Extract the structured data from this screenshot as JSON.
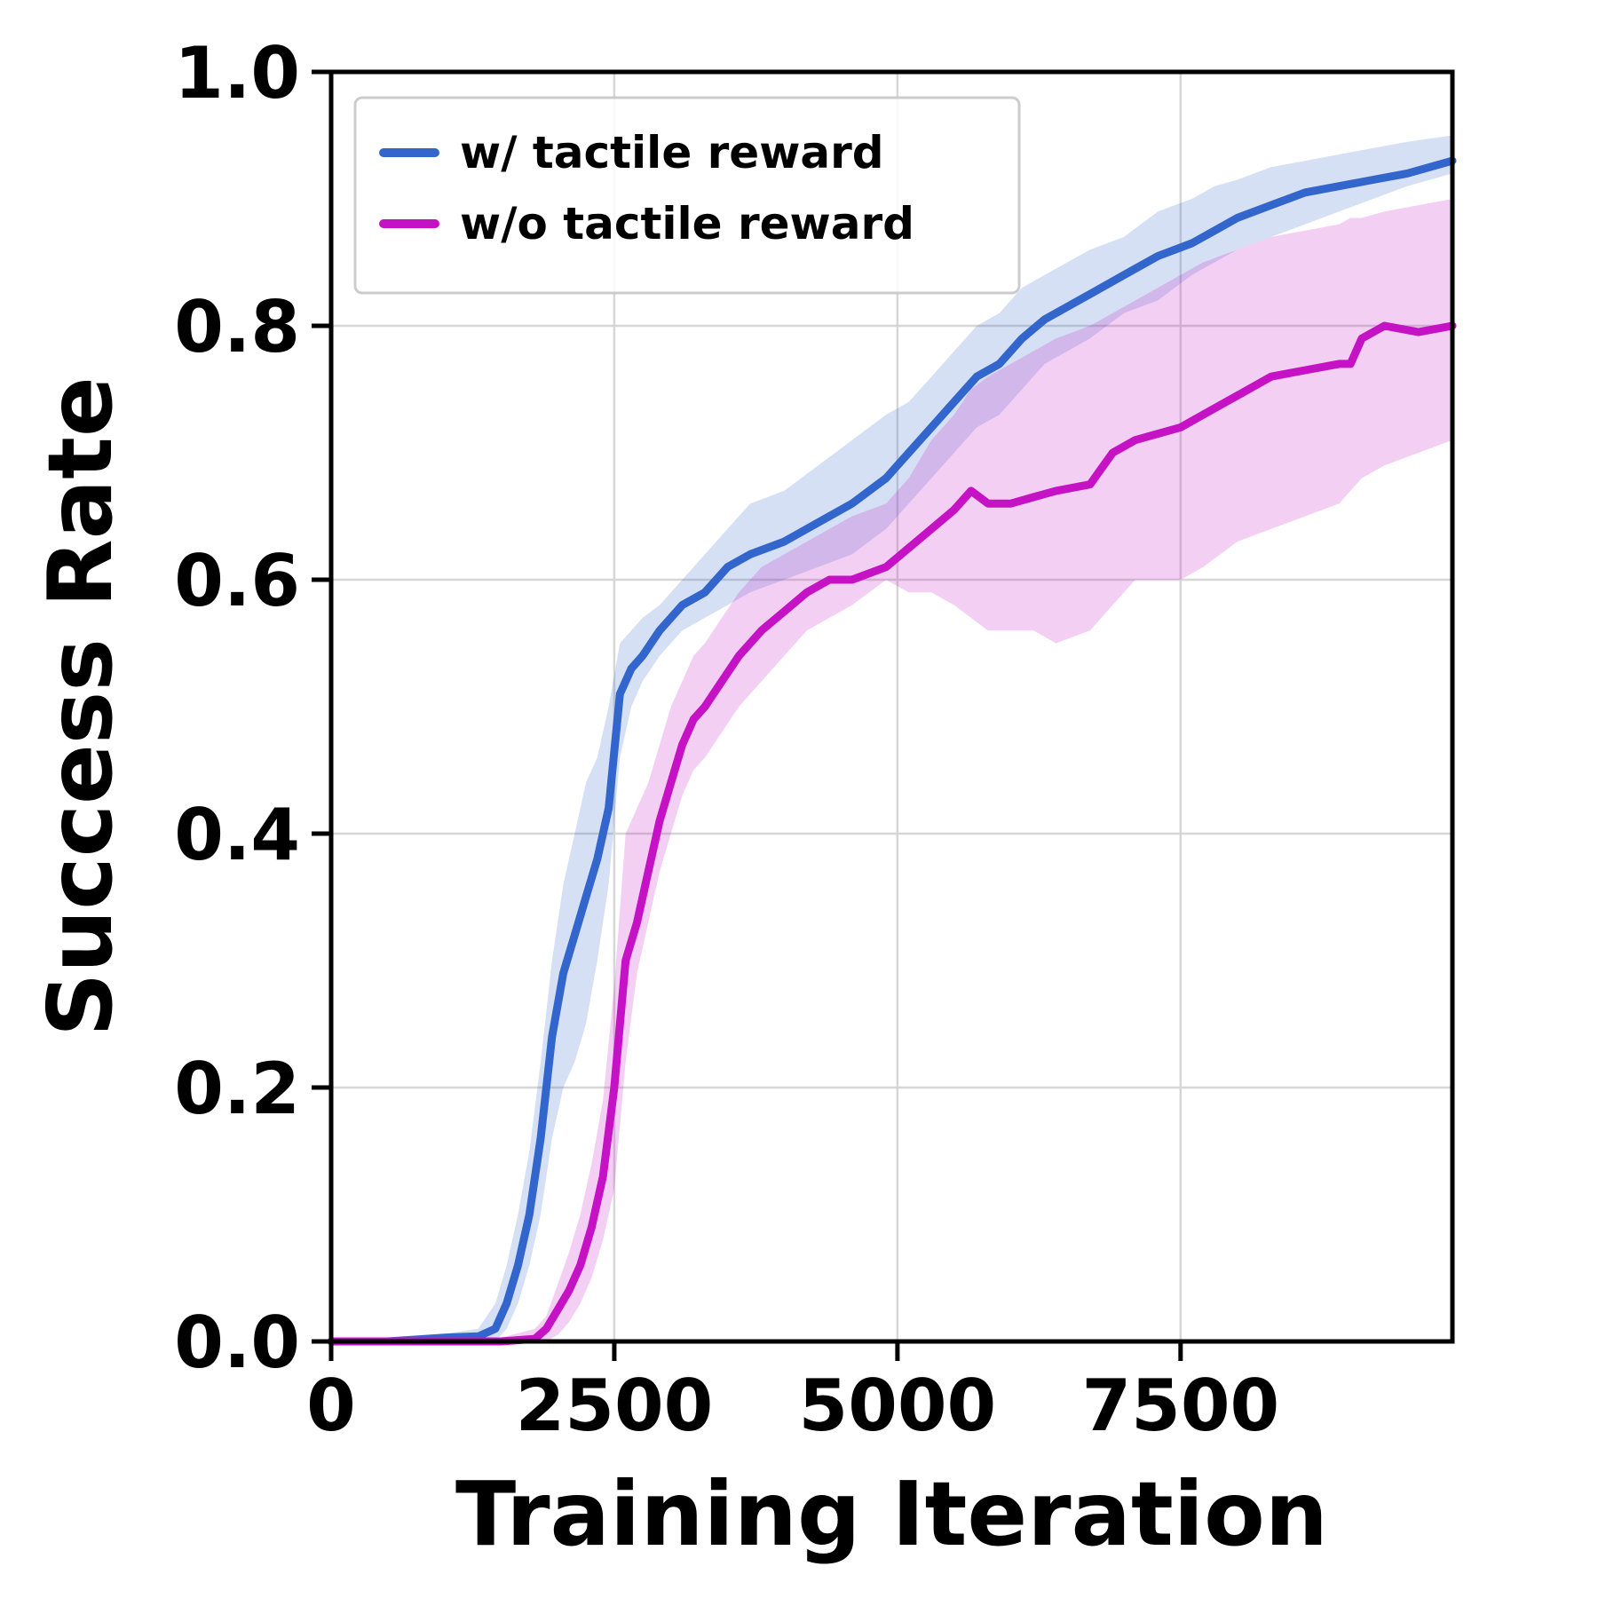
{
  "chart_data": {
    "type": "line",
    "xlabel": "Training Iteration",
    "ylabel": "Success Rate",
    "xlim": [
      0,
      9900
    ],
    "ylim": [
      0,
      1.0
    ],
    "xticks": [
      0,
      2500,
      5000,
      7500
    ],
    "xtick_labels": [
      "0",
      "2500",
      "5000",
      "7500"
    ],
    "yticks": [
      0.0,
      0.2,
      0.4,
      0.6,
      0.8,
      1.0
    ],
    "ytick_labels": [
      "0.0",
      "0.2",
      "0.4",
      "0.6",
      "0.8",
      "1.0"
    ],
    "grid": true,
    "legend_position": "top-left",
    "series": [
      {
        "name": "w/ tactile reward",
        "color": "#3366cc",
        "band_color": "#3366cc",
        "x": [
          0,
          500,
          1000,
          1300,
          1450,
          1550,
          1650,
          1750,
          1850,
          1950,
          2050,
          2150,
          2250,
          2350,
          2450,
          2550,
          2650,
          2750,
          2900,
          3100,
          3300,
          3500,
          3700,
          4000,
          4300,
          4600,
          4900,
          5100,
          5300,
          5500,
          5700,
          5900,
          6100,
          6300,
          6500,
          6700,
          7000,
          7300,
          7600,
          7800,
          8000,
          8300,
          8600,
          8900,
          9200,
          9500,
          9900
        ],
        "y": [
          0.0,
          0.0,
          0.003,
          0.004,
          0.01,
          0.03,
          0.06,
          0.1,
          0.16,
          0.24,
          0.29,
          0.32,
          0.35,
          0.38,
          0.42,
          0.51,
          0.53,
          0.54,
          0.56,
          0.58,
          0.59,
          0.61,
          0.62,
          0.63,
          0.645,
          0.66,
          0.68,
          0.7,
          0.72,
          0.74,
          0.76,
          0.77,
          0.79,
          0.805,
          0.815,
          0.825,
          0.84,
          0.855,
          0.865,
          0.875,
          0.885,
          0.895,
          0.905,
          0.91,
          0.915,
          0.92,
          0.93
        ],
        "lower": [
          0.0,
          0.0,
          0.0,
          0.0,
          0.0,
          0.01,
          0.03,
          0.06,
          0.1,
          0.16,
          0.2,
          0.22,
          0.25,
          0.3,
          0.36,
          0.46,
          0.5,
          0.52,
          0.54,
          0.56,
          0.57,
          0.58,
          0.59,
          0.6,
          0.61,
          0.62,
          0.64,
          0.66,
          0.68,
          0.7,
          0.72,
          0.73,
          0.75,
          0.77,
          0.78,
          0.79,
          0.81,
          0.82,
          0.84,
          0.85,
          0.86,
          0.87,
          0.88,
          0.89,
          0.9,
          0.91,
          0.92
        ],
        "upper": [
          0.0,
          0.0,
          0.006,
          0.01,
          0.03,
          0.06,
          0.1,
          0.15,
          0.22,
          0.3,
          0.36,
          0.4,
          0.44,
          0.46,
          0.5,
          0.55,
          0.56,
          0.57,
          0.58,
          0.6,
          0.62,
          0.64,
          0.66,
          0.67,
          0.69,
          0.71,
          0.73,
          0.74,
          0.76,
          0.78,
          0.8,
          0.81,
          0.83,
          0.84,
          0.85,
          0.86,
          0.87,
          0.89,
          0.9,
          0.91,
          0.915,
          0.925,
          0.93,
          0.935,
          0.94,
          0.945,
          0.95
        ]
      },
      {
        "name": "w/o tactile reward",
        "color": "#c412c4",
        "band_color": "#c412c4",
        "x": [
          0,
          500,
          1000,
          1500,
          1800,
          1900,
          2000,
          2100,
          2200,
          2300,
          2400,
          2500,
          2600,
          2700,
          2800,
          2900,
          3000,
          3100,
          3200,
          3300,
          3450,
          3600,
          3800,
          4000,
          4200,
          4400,
          4600,
          4900,
          5100,
          5300,
          5500,
          5650,
          5800,
          6000,
          6200,
          6400,
          6700,
          6900,
          7100,
          7300,
          7500,
          7700,
          8000,
          8300,
          8600,
          8900,
          9000,
          9100,
          9300,
          9600,
          9900
        ],
        "y": [
          0.0,
          0.0,
          0.0,
          0.0,
          0.002,
          0.01,
          0.025,
          0.04,
          0.06,
          0.09,
          0.13,
          0.2,
          0.3,
          0.33,
          0.37,
          0.41,
          0.44,
          0.47,
          0.49,
          0.5,
          0.52,
          0.54,
          0.56,
          0.575,
          0.59,
          0.6,
          0.6,
          0.61,
          0.625,
          0.64,
          0.655,
          0.67,
          0.66,
          0.66,
          0.665,
          0.67,
          0.675,
          0.7,
          0.71,
          0.715,
          0.72,
          0.73,
          0.745,
          0.76,
          0.765,
          0.77,
          0.77,
          0.79,
          0.8,
          0.795,
          0.8
        ],
        "lower": [
          0.0,
          0.0,
          0.0,
          0.0,
          0.0,
          0.0,
          0.005,
          0.015,
          0.03,
          0.05,
          0.08,
          0.12,
          0.22,
          0.29,
          0.33,
          0.37,
          0.4,
          0.43,
          0.45,
          0.46,
          0.48,
          0.5,
          0.52,
          0.54,
          0.56,
          0.57,
          0.58,
          0.6,
          0.59,
          0.59,
          0.58,
          0.57,
          0.56,
          0.56,
          0.56,
          0.55,
          0.56,
          0.58,
          0.6,
          0.6,
          0.6,
          0.61,
          0.63,
          0.64,
          0.65,
          0.66,
          0.67,
          0.68,
          0.69,
          0.7,
          0.71
        ],
        "upper": [
          0.0,
          0.0,
          0.0,
          0.003,
          0.01,
          0.02,
          0.045,
          0.07,
          0.1,
          0.14,
          0.19,
          0.28,
          0.4,
          0.42,
          0.44,
          0.47,
          0.5,
          0.52,
          0.54,
          0.55,
          0.57,
          0.59,
          0.61,
          0.62,
          0.63,
          0.64,
          0.65,
          0.66,
          0.68,
          0.71,
          0.73,
          0.75,
          0.76,
          0.77,
          0.78,
          0.79,
          0.8,
          0.81,
          0.82,
          0.83,
          0.84,
          0.85,
          0.86,
          0.87,
          0.875,
          0.88,
          0.885,
          0.885,
          0.89,
          0.895,
          0.9
        ]
      }
    ]
  }
}
